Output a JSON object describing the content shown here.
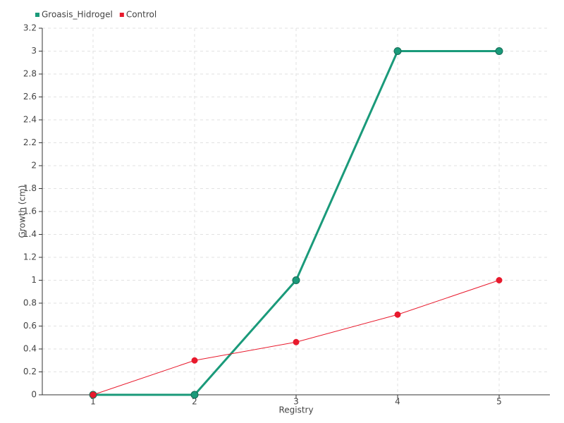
{
  "chart_data": {
    "type": "line",
    "x_label": "Registry",
    "y_label": "Growth (cm)",
    "categories": [
      "1",
      "2",
      "3",
      "4",
      "5"
    ],
    "series": [
      {
        "name": "Groasis_Hidrogel",
        "color": "#1a9a7a",
        "values": [
          0,
          0,
          1,
          3,
          3
        ]
      },
      {
        "name": "Control",
        "color": "#e8192c",
        "values": [
          0,
          0.3,
          0.46,
          0.7,
          1
        ]
      }
    ],
    "ylim": [
      0,
      3.2
    ],
    "yticks": [
      0,
      0.2,
      0.4,
      0.6,
      0.8,
      1,
      1.2,
      1.4,
      1.6,
      1.8,
      2,
      2.2,
      2.4,
      2.6,
      2.8,
      3,
      3.2
    ],
    "grid": true,
    "legend": "top-left"
  }
}
